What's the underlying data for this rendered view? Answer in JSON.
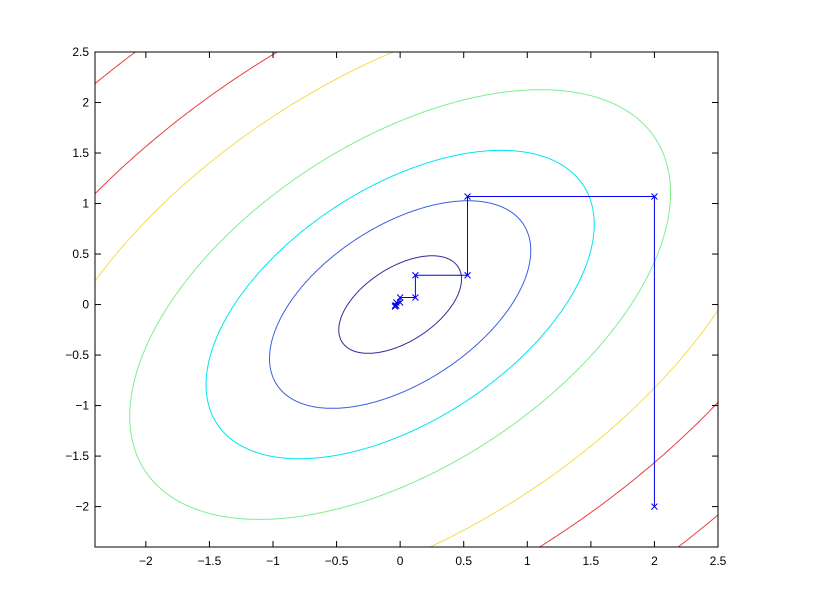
{
  "chart_data": {
    "type": "line",
    "title": "",
    "xlabel": "",
    "ylabel": "",
    "xlim": [
      -2.4,
      2.5
    ],
    "ylim": [
      -2.4,
      2.5
    ],
    "grid": false,
    "x_ticks": [
      "−2",
      "−1.5",
      "−1",
      "−0.5",
      "0",
      "0.5",
      "1",
      "1.5",
      "2",
      "2.5"
    ],
    "x_tick_values": [
      -2,
      -1.5,
      -1,
      -0.5,
      0,
      0.5,
      1,
      1.5,
      2,
      2.5
    ],
    "y_ticks": [
      "−2",
      "−1.5",
      "−1",
      "−0.5",
      "0",
      "0.5",
      "1",
      "1.5",
      "2",
      "2.5"
    ],
    "y_tick_values": [
      -2,
      -1.5,
      -1,
      -0.5,
      0,
      0.5,
      1,
      1.5,
      2,
      2.5
    ],
    "contours": {
      "function": "x^2 + y^2 - 1.04xy",
      "levels": [
        0.17,
        0.77,
        1.7,
        3.3,
        6.4,
        9.7,
        16
      ],
      "colors": [
        "#3030a0",
        "#3a5fe0",
        "#00e5ee",
        "#80ee90",
        "#f5dc50",
        "#e84040",
        "#e84040"
      ]
    },
    "path": {
      "color": "#0000ee",
      "marker": "x",
      "x": [
        2,
        2,
        0.53,
        0.53,
        0.12,
        0.12,
        0,
        0,
        -0.03,
        -0.03,
        -0.04,
        -0.04
      ],
      "y": [
        -2,
        1.07,
        1.07,
        0.29,
        0.29,
        0.07,
        0.07,
        0.02,
        0.02,
        -0.01,
        -0.01,
        -0.02
      ]
    }
  }
}
